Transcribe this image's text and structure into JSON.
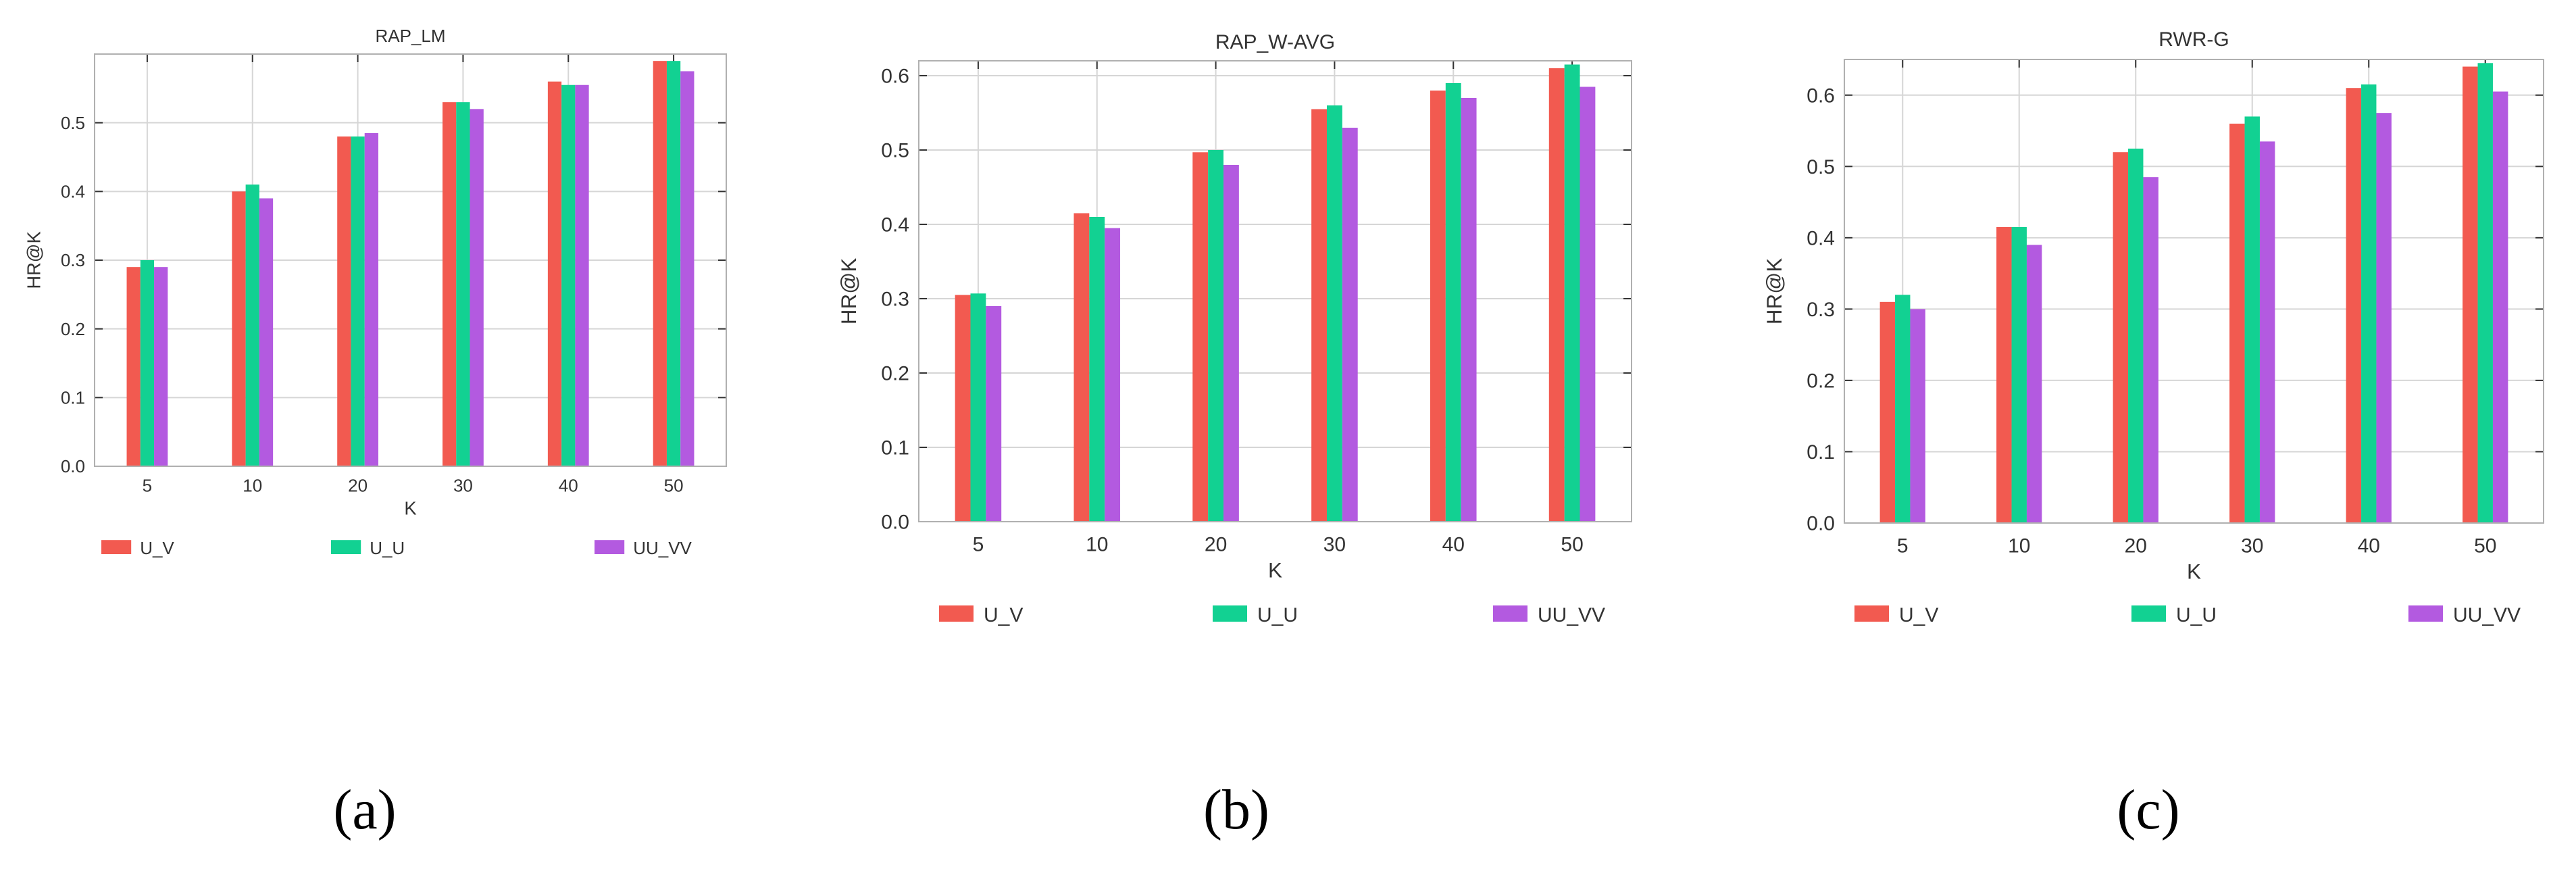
{
  "colors": {
    "U_V": "#f25a50",
    "U_U": "#12d192",
    "UU_VV": "#b35ae0"
  },
  "captions": [
    "(a)",
    "(b)",
    "(c)"
  ],
  "chart_data": [
    {
      "type": "bar",
      "title": "RAP_LM",
      "xlabel": "K",
      "ylabel": "HR@K",
      "categories": [
        "5",
        "10",
        "20",
        "30",
        "40",
        "50"
      ],
      "ylim": [
        0,
        0.6
      ],
      "yticks": [
        0.0,
        0.1,
        0.2,
        0.3,
        0.4,
        0.5
      ],
      "ytick_labels": [
        "0.0",
        "0.1",
        "0.2",
        "0.3",
        "0.4",
        "0.5"
      ],
      "legend": [
        "U_V",
        "U_U",
        "UU_VV"
      ],
      "series": [
        {
          "name": "U_V",
          "values": [
            0.29,
            0.4,
            0.48,
            0.53,
            0.56,
            0.59
          ]
        },
        {
          "name": "U_U",
          "values": [
            0.3,
            0.41,
            0.48,
            0.53,
            0.555,
            0.59
          ]
        },
        {
          "name": "UU_VV",
          "values": [
            0.29,
            0.39,
            0.485,
            0.52,
            0.555,
            0.575
          ]
        }
      ]
    },
    {
      "type": "bar",
      "title": "RAP_W-AVG",
      "xlabel": "K",
      "ylabel": "HR@K",
      "categories": [
        "5",
        "10",
        "20",
        "30",
        "40",
        "50"
      ],
      "ylim": [
        0,
        0.62
      ],
      "yticks": [
        0.0,
        0.1,
        0.2,
        0.3,
        0.4,
        0.5,
        0.6
      ],
      "ytick_labels": [
        "0.0",
        "0.1",
        "0.2",
        "0.3",
        "0.4",
        "0.5",
        "0.6"
      ],
      "legend": [
        "U_V",
        "U_U",
        "UU_VV"
      ],
      "series": [
        {
          "name": "U_V",
          "values": [
            0.305,
            0.415,
            0.497,
            0.555,
            0.58,
            0.61
          ]
        },
        {
          "name": "U_U",
          "values": [
            0.307,
            0.41,
            0.5,
            0.56,
            0.59,
            0.615
          ]
        },
        {
          "name": "UU_VV",
          "values": [
            0.29,
            0.395,
            0.48,
            0.53,
            0.57,
            0.585
          ]
        }
      ]
    },
    {
      "type": "bar",
      "title": "RWR-G",
      "xlabel": "K",
      "ylabel": "HR@K",
      "categories": [
        "5",
        "10",
        "20",
        "30",
        "40",
        "50"
      ],
      "ylim": [
        0,
        0.65
      ],
      "yticks": [
        0.0,
        0.1,
        0.2,
        0.3,
        0.4,
        0.5,
        0.6
      ],
      "ytick_labels": [
        "0.0",
        "0.1",
        "0.2",
        "0.3",
        "0.4",
        "0.5",
        "0.6"
      ],
      "legend": [
        "U_V",
        "U_U",
        "UU_VV"
      ],
      "series": [
        {
          "name": "U_V",
          "values": [
            0.31,
            0.415,
            0.52,
            0.56,
            0.61,
            0.64
          ]
        },
        {
          "name": "U_U",
          "values": [
            0.32,
            0.415,
            0.525,
            0.57,
            0.615,
            0.645
          ]
        },
        {
          "name": "UU_VV",
          "values": [
            0.3,
            0.39,
            0.485,
            0.535,
            0.575,
            0.605
          ]
        }
      ]
    }
  ]
}
